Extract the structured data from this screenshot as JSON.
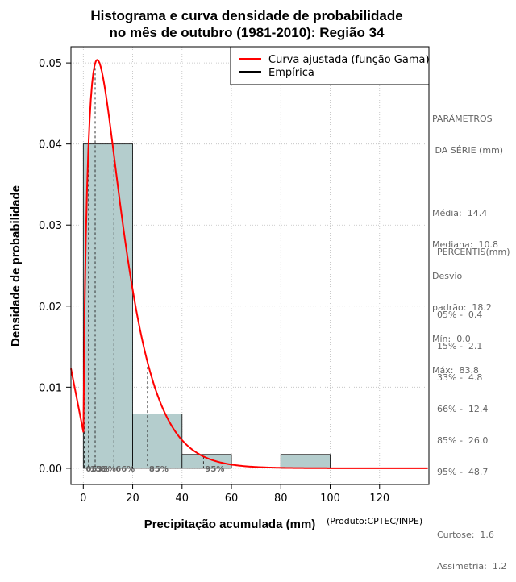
{
  "chart_data": {
    "type": "bar",
    "title": [
      "Histograma e curva densidade de probabilidade",
      "no mês de outubro (1981-2010): Região 34"
    ],
    "xlabel": "Precipitação acumulada (mm)",
    "ylabel": "Densidade de probabilidade",
    "credit": "(Produto:CPTEC/INPE)",
    "xlim": [
      -5,
      140
    ],
    "ylim": [
      -0.002,
      0.052
    ],
    "xticks": [
      0,
      20,
      40,
      60,
      80,
      100,
      120
    ],
    "yticks": [
      0.0,
      0.01,
      0.02,
      0.03,
      0.04,
      0.05
    ],
    "ytick_labels": [
      "0.00",
      "0.01",
      "0.02",
      "0.03",
      "0.04",
      "0.05"
    ],
    "grid": true,
    "bins": [
      {
        "from": 0,
        "to": 20,
        "density": 0.04
      },
      {
        "from": 20,
        "to": 40,
        "density": 0.0067
      },
      {
        "from": 40,
        "to": 60,
        "density": 0.0017
      },
      {
        "from": 60,
        "to": 80,
        "density": 0.0
      },
      {
        "from": 80,
        "to": 100,
        "density": 0.0017
      },
      {
        "from": 100,
        "to": 140,
        "density": 0.0
      }
    ],
    "fitted_curve": {
      "name": "Curva ajustada (função Gama)",
      "distribution": "gamma",
      "shape": 1.65,
      "scale": 8.7
    },
    "percentile_lines": [
      {
        "label": "05%",
        "value": 0.4
      },
      {
        "label": "15%",
        "value": 2.1
      },
      {
        "label": "33%",
        "value": 4.8
      },
      {
        "label": "66%",
        "value": 12.4
      },
      {
        "label": "85%",
        "value": 26.0
      },
      {
        "label": "95%",
        "value": 48.7
      }
    ],
    "legend": [
      {
        "label": "Curva ajustada (função Gama)",
        "color": "#ff0000"
      },
      {
        "label": "Empírica",
        "color": "#000000"
      }
    ],
    "legend_position": "top-right",
    "colors": {
      "bar_fill": "#b4cdcd",
      "bar_stroke": "#000000",
      "curve": "#ff0000",
      "grid": "#bebebe",
      "percentile_label": "#666666"
    }
  },
  "stats_panel": {
    "params_title": [
      "PARÂMETROS",
      " DA SÉRIE (mm)"
    ],
    "params": [
      "Média:  14.4",
      "Mediana:  10.8",
      "Desvio",
      "padrão:  18.2",
      "Mín:  0.0",
      "Máx:  83.8"
    ],
    "percentis_title": "PERCENTIS(mm)",
    "percentis": [
      "05% -  0.4",
      "15% -  2.1",
      "33% -  4.8",
      "66% -  12.4",
      "85% -  26.0",
      "95% -  48.7"
    ],
    "shape_stats": [
      "Curtose:  1.6",
      "Assimetria:  1.2"
    ]
  }
}
